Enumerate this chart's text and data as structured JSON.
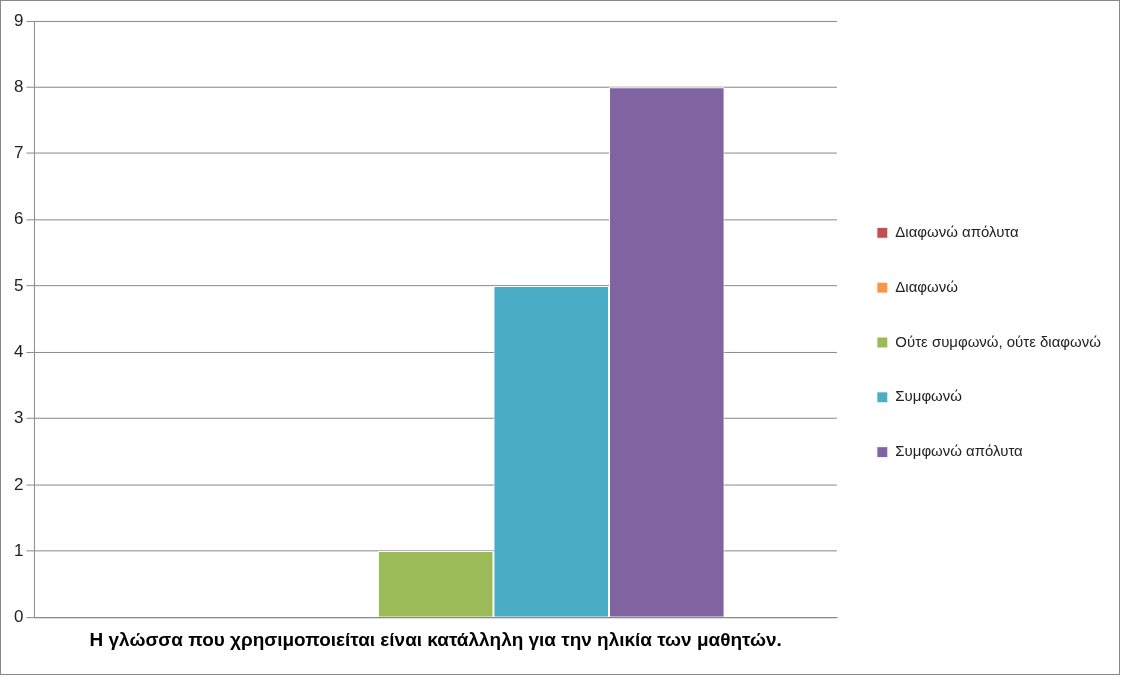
{
  "chart_data": {
    "type": "bar",
    "categories": [
      "Η γλώσσα που χρησιμοποιείται είναι κατάλληλη για την ηλικία των μαθητών."
    ],
    "series": [
      {
        "name": "Διαφωνώ απόλυτα",
        "color": "#c0504d",
        "values": [
          0
        ]
      },
      {
        "name": "Διαφωνώ",
        "color": "#f79646",
        "values": [
          0
        ]
      },
      {
        "name": "Ούτε συμφωνώ, ούτε διαφωνώ",
        "color": "#9bbb59",
        "values": [
          1
        ]
      },
      {
        "name": "Συμφωνώ",
        "color": "#4bacc6",
        "values": [
          5
        ]
      },
      {
        "name": "Συμφωνώ απόλυτα",
        "color": "#8064a2",
        "values": [
          8
        ]
      }
    ],
    "ylim": [
      0,
      9
    ],
    "yticks": [
      0,
      1,
      2,
      3,
      4,
      5,
      6,
      7,
      8,
      9
    ],
    "grid": "y",
    "legend": "right"
  }
}
